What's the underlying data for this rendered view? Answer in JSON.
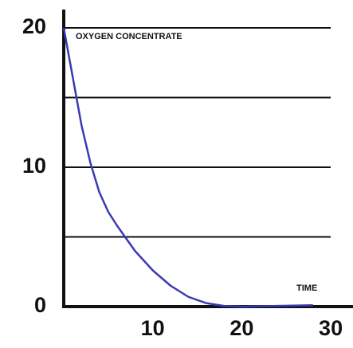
{
  "chart_data": {
    "type": "line",
    "y_label": "OXYGEN CONCENTRATE",
    "x_label": "TIME",
    "x": [
      0,
      1,
      2,
      3,
      4,
      5,
      6,
      7,
      8,
      10,
      12,
      14,
      16,
      18,
      20,
      24,
      28
    ],
    "series": [
      {
        "color": "#3a3ab4",
        "values": [
          20,
          16.5,
          13,
          10.3,
          8.2,
          6.8,
          5.8,
          4.9,
          4.0,
          2.6,
          1.5,
          0.7,
          0.25,
          0.05,
          0,
          0.05,
          0.1
        ]
      }
    ],
    "xlim": [
      0,
      32.5
    ],
    "xticks": [
      10,
      20,
      30
    ],
    "ylim": [
      0,
      20
    ],
    "yticks": [
      0,
      10,
      20
    ],
    "grid_values": [
      5,
      10,
      15,
      20
    ]
  }
}
